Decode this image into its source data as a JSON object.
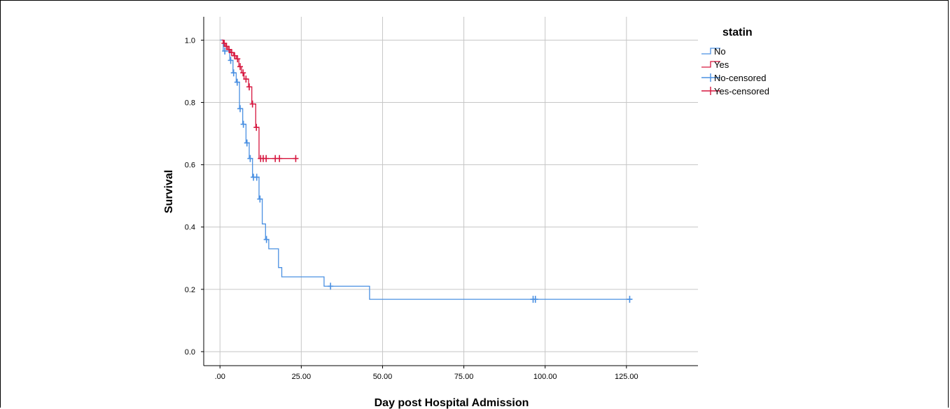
{
  "chart_data": {
    "type": "line",
    "subtype": "kaplan-meier-step",
    "xlabel": "Day post Hospital Admission",
    "ylabel": "Survival",
    "xlim": [
      -5,
      147
    ],
    "ylim": [
      -0.045,
      1.075
    ],
    "x_ticks": [
      {
        "value": 0,
        "label": ".00"
      },
      {
        "value": 25,
        "label": "25.00"
      },
      {
        "value": 50,
        "label": "50.00"
      },
      {
        "value": 75,
        "label": "75.00"
      },
      {
        "value": 100,
        "label": "100.00"
      },
      {
        "value": 125,
        "label": "125.00"
      }
    ],
    "y_ticks": [
      {
        "value": 0.0,
        "label": "0.0"
      },
      {
        "value": 0.2,
        "label": "0.2"
      },
      {
        "value": 0.4,
        "label": "0.4"
      },
      {
        "value": 0.6,
        "label": "0.6"
      },
      {
        "value": 0.8,
        "label": "0.8"
      },
      {
        "value": 1.0,
        "label": "1.0"
      }
    ],
    "grid": true,
    "legend": {
      "title": "statin",
      "placement": "right",
      "entries": [
        {
          "label": "No",
          "kind": "step",
          "color": "#4a90e2"
        },
        {
          "label": "Yes",
          "kind": "step",
          "color": "#d6173f"
        },
        {
          "label": "No-censored",
          "kind": "censor",
          "color": "#4a90e2"
        },
        {
          "label": "Yes-censored",
          "kind": "censor",
          "color": "#d6173f"
        }
      ]
    },
    "series": [
      {
        "name": "No",
        "color": "#4a90e2",
        "steps": [
          [
            0,
            1.0
          ],
          [
            1,
            0.965
          ],
          [
            3,
            0.935
          ],
          [
            4,
            0.895
          ],
          [
            5,
            0.865
          ],
          [
            6,
            0.78
          ],
          [
            7,
            0.73
          ],
          [
            8,
            0.67
          ],
          [
            9,
            0.62
          ],
          [
            10,
            0.56
          ],
          [
            12,
            0.49
          ],
          [
            13,
            0.41
          ],
          [
            14,
            0.36
          ],
          [
            15,
            0.33
          ],
          [
            18,
            0.27
          ],
          [
            19,
            0.24
          ],
          [
            32,
            0.21
          ],
          [
            46,
            0.168
          ],
          [
            126,
            0.168
          ]
        ],
        "censored": [
          [
            1.5,
            0.965
          ],
          [
            3.3,
            0.935
          ],
          [
            4.2,
            0.895
          ],
          [
            5.3,
            0.865
          ],
          [
            6.2,
            0.78
          ],
          [
            7.2,
            0.73
          ],
          [
            8.3,
            0.67
          ],
          [
            9.3,
            0.62
          ],
          [
            10.3,
            0.56
          ],
          [
            11.3,
            0.56
          ],
          [
            12.3,
            0.49
          ],
          [
            14.3,
            0.36
          ],
          [
            34,
            0.21
          ],
          [
            96.3,
            0.168
          ],
          [
            97,
            0.168
          ],
          [
            126,
            0.168
          ]
        ]
      },
      {
        "name": "Yes",
        "color": "#d6173f",
        "steps": [
          [
            0.5,
            1.0
          ],
          [
            1,
            0.99
          ],
          [
            1.7,
            0.98
          ],
          [
            2.4,
            0.97
          ],
          [
            3.2,
            0.96
          ],
          [
            4.2,
            0.95
          ],
          [
            5,
            0.94
          ],
          [
            5.8,
            0.915
          ],
          [
            6.6,
            0.895
          ],
          [
            7.4,
            0.875
          ],
          [
            8.8,
            0.85
          ],
          [
            9.8,
            0.795
          ],
          [
            11,
            0.72
          ],
          [
            12,
            0.62
          ],
          [
            23.5,
            0.62
          ]
        ],
        "censored": [
          [
            1.3,
            0.99
          ],
          [
            2,
            0.98
          ],
          [
            2.8,
            0.97
          ],
          [
            3.6,
            0.96
          ],
          [
            4.5,
            0.95
          ],
          [
            5.4,
            0.94
          ],
          [
            6.2,
            0.915
          ],
          [
            7.1,
            0.895
          ],
          [
            8,
            0.875
          ],
          [
            9,
            0.85
          ],
          [
            10,
            0.795
          ],
          [
            11.2,
            0.72
          ],
          [
            12.5,
            0.62
          ],
          [
            13.3,
            0.62
          ],
          [
            14.2,
            0.62
          ],
          [
            17,
            0.62
          ],
          [
            18.3,
            0.62
          ],
          [
            23.3,
            0.62
          ]
        ]
      }
    ]
  }
}
